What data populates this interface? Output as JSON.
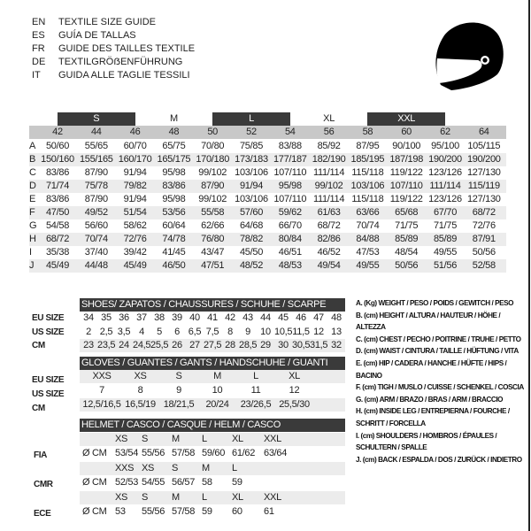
{
  "languages": [
    {
      "code": "EN",
      "title": "TEXTILE SIZE GUIDE"
    },
    {
      "code": "ES",
      "title": "GUÍA DE TALLAS"
    },
    {
      "code": "FR",
      "title": "GUIDE DES TAILLES TEXTILE"
    },
    {
      "code": "DE",
      "title": "TEXTILGRÖẞENFÜHRUNG"
    },
    {
      "code": "IT",
      "title": "GUIDA ALLE TAGLIE TESSILI"
    }
  ],
  "icon": "helmet-icon",
  "textile": {
    "bands": [
      "S",
      "M",
      "L",
      "XL",
      "XXL"
    ],
    "sizes": [
      "42",
      "44",
      "46",
      "48",
      "50",
      "52",
      "54",
      "56",
      "58",
      "60",
      "62",
      "64"
    ],
    "rows": [
      {
        "letter": "A",
        "values": [
          "50/60",
          "55/65",
          "60/70",
          "65/75",
          "70/80",
          "75/85",
          "83/88",
          "85/92",
          "87/95",
          "90/100",
          "95/100",
          "105/115"
        ]
      },
      {
        "letter": "B",
        "values": [
          "150/160",
          "155/165",
          "160/170",
          "165/175",
          "170/180",
          "173/183",
          "177/187",
          "182/190",
          "185/195",
          "187/198",
          "190/200",
          "190/200"
        ]
      },
      {
        "letter": "C",
        "values": [
          "83/86",
          "87/90",
          "91/94",
          "95/98",
          "99/102",
          "103/106",
          "107/110",
          "111/114",
          "115/118",
          "119/122",
          "123/126",
          "127/130"
        ]
      },
      {
        "letter": "D",
        "values": [
          "71/74",
          "75/78",
          "79/82",
          "83/86",
          "87/90",
          "91/94",
          "95/98",
          "99/102",
          "103/106",
          "107/110",
          "111/114",
          "115/119"
        ]
      },
      {
        "letter": "E",
        "values": [
          "83/86",
          "87/90",
          "91/94",
          "95/98",
          "99/102",
          "103/106",
          "107/110",
          "111/114",
          "115/118",
          "119/122",
          "123/126",
          "127/130"
        ]
      },
      {
        "letter": "F",
        "values": [
          "47/50",
          "49/52",
          "51/54",
          "53/56",
          "55/58",
          "57/60",
          "59/62",
          "61/63",
          "63/66",
          "65/68",
          "67/70",
          "68/72"
        ]
      },
      {
        "letter": "G",
        "values": [
          "54/58",
          "56/60",
          "58/62",
          "60/64",
          "62/66",
          "64/68",
          "66/70",
          "68/72",
          "70/74",
          "71/75",
          "71/75",
          "72/76"
        ]
      },
      {
        "letter": "H",
        "values": [
          "68/72",
          "70/74",
          "72/76",
          "74/78",
          "76/80",
          "78/82",
          "80/84",
          "82/86",
          "84/88",
          "85/89",
          "85/89",
          "87/91"
        ]
      },
      {
        "letter": "I",
        "values": [
          "35/38",
          "37/40",
          "39/42",
          "41/45",
          "43/47",
          "45/50",
          "46/51",
          "46/52",
          "47/53",
          "48/54",
          "49/55",
          "50/56"
        ]
      },
      {
        "letter": "J",
        "values": [
          "45/49",
          "44/48",
          "45/49",
          "46/50",
          "47/51",
          "48/52",
          "48/53",
          "49/54",
          "49/55",
          "50/56",
          "51/56",
          "52/58"
        ]
      }
    ]
  },
  "shoes": {
    "title": "SHOES/ ZAPATOS / CHAUSSURES / SCHUHE / SCARPE",
    "rows": [
      {
        "label": "EU SIZE",
        "values": [
          "34",
          "35",
          "36",
          "37",
          "38",
          "39",
          "40",
          "41",
          "42",
          "43",
          "44",
          "45",
          "46",
          "47",
          "48"
        ]
      },
      {
        "label": "US SIZE",
        "values": [
          "2",
          "2,5",
          "3,5",
          "4",
          "5",
          "6",
          "6,5",
          "7,5",
          "8",
          "9",
          "10",
          "10,5",
          "11,5",
          "12",
          "13"
        ]
      },
      {
        "label": "CM",
        "values": [
          "23",
          "23,5",
          "24",
          "24,5",
          "25,5",
          "26",
          "27",
          "27,5",
          "28",
          "28,5",
          "29",
          "30",
          "30,5",
          "31,5",
          "32"
        ]
      }
    ]
  },
  "gloves": {
    "title": "GLOVES / GUANTES / GANTS / HANDSCHUHE / GUANTI",
    "rows": [
      {
        "label": "EU SIZE",
        "values": [
          "XXS",
          "XS",
          "S",
          "M",
          "L",
          "XL"
        ]
      },
      {
        "label": "US SIZE",
        "values": [
          "7",
          "8",
          "9",
          "10",
          "11",
          "12"
        ]
      },
      {
        "label": "CM",
        "values": [
          "12,5/16,5",
          "16,5/19",
          "18/21,5",
          "20/24",
          "23/26,5",
          "25,5/30"
        ]
      }
    ]
  },
  "helmet": {
    "title": "HELMET / CASCO / CASQUE / HELM / CASCO",
    "unit": "Ø CM",
    "groups": [
      {
        "label": "FIA",
        "sizes": [
          "XS",
          "S",
          "M",
          "L",
          "XL",
          "XXL"
        ],
        "values": [
          "53/54",
          "55/56",
          "57/58",
          "59/60",
          "61/62",
          "63/64"
        ]
      },
      {
        "label": "CMR",
        "sizes": [
          "XXS",
          "XS",
          "S",
          "M",
          "L"
        ],
        "values": [
          "52/53",
          "54/55",
          "56/57",
          "58",
          "59"
        ]
      },
      {
        "label": "ECE",
        "sizes": [
          "XS",
          "S",
          "M",
          "L",
          "XL",
          "XXL"
        ],
        "values": [
          "53",
          "55/56",
          "57/58",
          "59",
          "60",
          "61"
        ]
      }
    ]
  },
  "legend": [
    "A. (Kg) WEIGHT / PESO / POIDS / GEWITCH / PESO",
    "B. (cm) HEIGHT / ALTURA / HAUTEUR / HÖHE / ALTEZZA",
    "C. (cm) CHEST / PECHO / POITRINE / TRUHE / PETTO",
    "D. (cm) WAIST / CINTURA / TAILLE / HÜFTUNG / VITA",
    "E. (cm) HIP / CADERA / HANCHE / HÜFTE / HIPS /  BACINO",
    "F.  (cm) TIGH / MUSLO / CUISSE / SCHENKEL / COSCIA",
    "G. (cm) ARM  / BRAZO / BRAS / ARM / BRACCIO",
    "H. (cm) INSIDE LEG / ENTREPIERNA / FOURCHE / SCHRITT / FORCELLA",
    "I.  (cm) SHOULDERS / HOMBROS / ÉPAULES / SCHULTERN / SPALLE",
    "J. (cm) BACK / ESPALDA / DOS / ZURÜCK / INDIETRO"
  ]
}
